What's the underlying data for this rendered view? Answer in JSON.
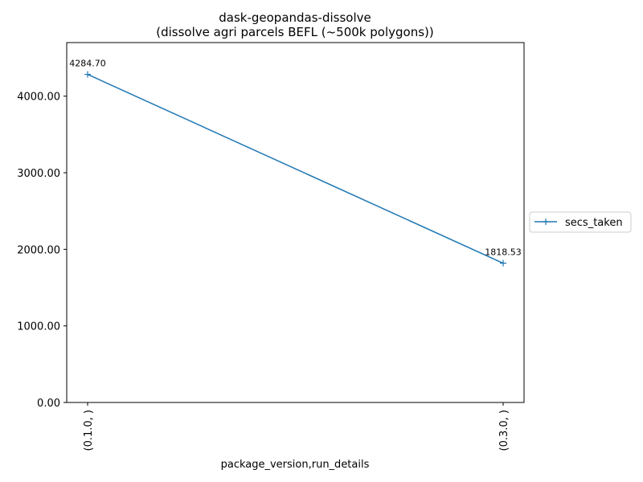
{
  "chart_data": {
    "type": "line",
    "title": "dask-geopandas-dissolve",
    "subtitle": "(dissolve agri parcels BEFL (~500k polygons))",
    "xlabel": "package_version,run_details",
    "ylabel": "",
    "categories": [
      "(0.1.0, )",
      "(0.3.0, )"
    ],
    "series": [
      {
        "name": "secs_taken",
        "values": [
          4284.7,
          1818.53
        ],
        "labels": [
          "4284.70",
          "1818.53"
        ],
        "color": "#1f77b4"
      }
    ],
    "ylim": [
      0,
      4700
    ],
    "yticks": [
      0,
      1000,
      2000,
      3000,
      4000
    ],
    "ytick_labels": [
      "0.00",
      "1000.00",
      "2000.00",
      "3000.00",
      "4000.00"
    ],
    "grid": false,
    "legend": "outside-right",
    "marker": "plus"
  }
}
